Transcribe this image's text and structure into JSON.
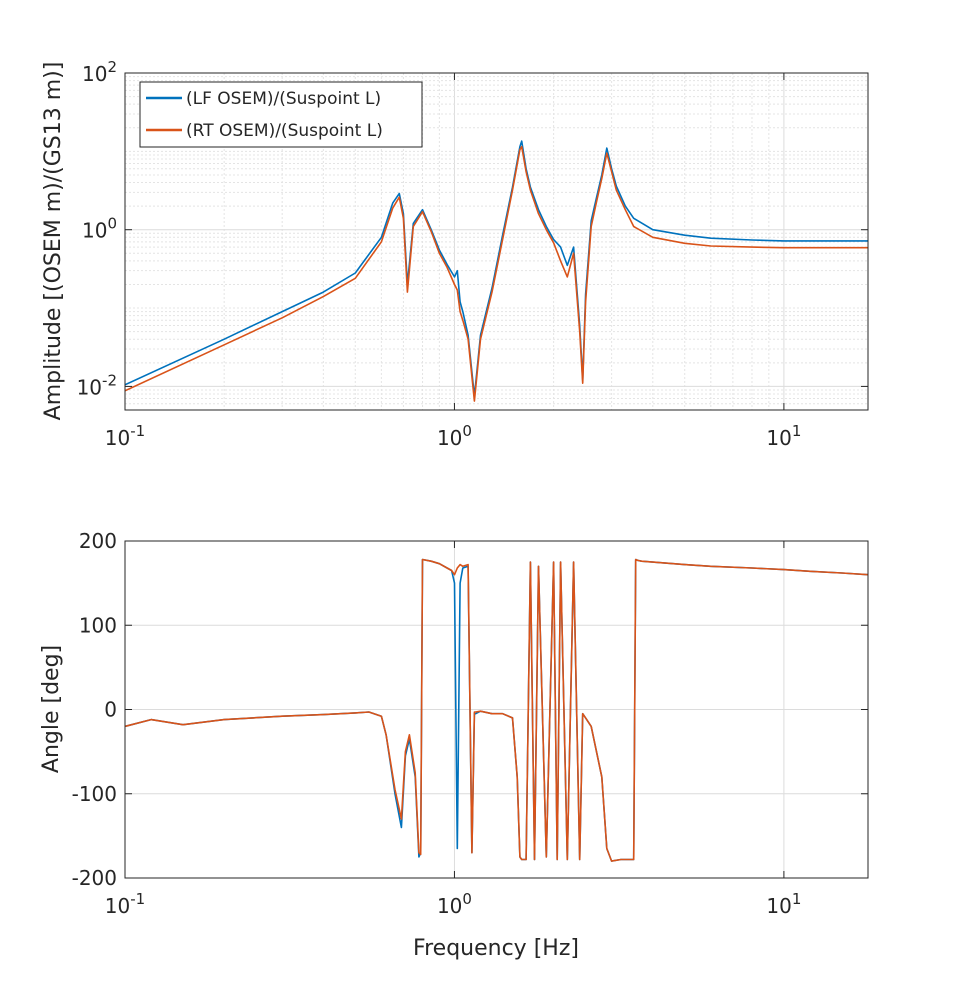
{
  "chart_data": [
    {
      "type": "line",
      "panel": "magnitude",
      "xlabel": "",
      "ylabel": "Amplitude [(OSEM m)/(GS13 m)]",
      "xscale": "log",
      "yscale": "log",
      "xlim": [
        0.1,
        18
      ],
      "ylim": [
        0.005,
        100
      ],
      "xticks": [
        0.1,
        1,
        10
      ],
      "xtick_labels": [
        {
          "base": "10",
          "exp": "-1"
        },
        {
          "base": "10",
          "exp": "0"
        },
        {
          "base": "10",
          "exp": "1"
        }
      ],
      "yticks": [
        0.01,
        1,
        100
      ],
      "ytick_labels": [
        {
          "base": "10",
          "exp": "-2"
        },
        {
          "base": "10",
          "exp": "0"
        },
        {
          "base": "10",
          "exp": "2"
        }
      ],
      "grid": "major+minor",
      "legend_location": "top-left",
      "series": [
        {
          "name": "(LF OSEM)/(Suspoint L)",
          "color": "#0072BD",
          "x": [
            0.1,
            0.2,
            0.3,
            0.4,
            0.5,
            0.6,
            0.65,
            0.68,
            0.7,
            0.72,
            0.75,
            0.8,
            0.85,
            0.9,
            0.95,
            1.0,
            1.02,
            1.04,
            1.06,
            1.1,
            1.15,
            1.2,
            1.3,
            1.4,
            1.5,
            1.58,
            1.6,
            1.65,
            1.7,
            1.8,
            1.9,
            2.0,
            2.1,
            2.2,
            2.3,
            2.4,
            2.45,
            2.5,
            2.6,
            2.7,
            2.8,
            2.9,
            3.0,
            3.1,
            3.3,
            3.5,
            4.0,
            5.0,
            6.0,
            8.0,
            10.0,
            12.0,
            15.0,
            18.0
          ],
          "y": [
            0.0105,
            0.04,
            0.09,
            0.16,
            0.28,
            0.8,
            2.2,
            2.9,
            1.6,
            0.2,
            1.2,
            1.8,
            1.0,
            0.55,
            0.36,
            0.25,
            0.3,
            0.12,
            0.09,
            0.045,
            0.0075,
            0.045,
            0.18,
            0.85,
            3.5,
            11.5,
            13.5,
            6.0,
            3.5,
            1.8,
            1.1,
            0.75,
            0.6,
            0.35,
            0.6,
            0.06,
            0.012,
            0.15,
            1.3,
            2.6,
            5.0,
            11.0,
            6.0,
            3.6,
            2.0,
            1.4,
            1.0,
            0.85,
            0.78,
            0.74,
            0.72,
            0.72,
            0.72,
            0.72
          ]
        },
        {
          "name": "(RT OSEM)/(Suspoint L)",
          "color": "#D95319",
          "x": [
            0.1,
            0.2,
            0.3,
            0.4,
            0.5,
            0.6,
            0.65,
            0.68,
            0.7,
            0.72,
            0.75,
            0.8,
            0.85,
            0.9,
            0.95,
            1.0,
            1.02,
            1.04,
            1.06,
            1.1,
            1.15,
            1.2,
            1.3,
            1.4,
            1.5,
            1.58,
            1.6,
            1.65,
            1.7,
            1.8,
            1.9,
            2.0,
            2.1,
            2.2,
            2.3,
            2.4,
            2.45,
            2.5,
            2.6,
            2.7,
            2.8,
            2.9,
            3.0,
            3.1,
            3.3,
            3.5,
            4.0,
            5.0,
            6.0,
            8.0,
            10.0,
            12.0,
            15.0,
            18.0
          ],
          "y": [
            0.0088,
            0.034,
            0.075,
            0.14,
            0.24,
            0.7,
            1.9,
            2.6,
            1.4,
            0.16,
            1.1,
            1.7,
            0.95,
            0.5,
            0.33,
            0.2,
            0.17,
            0.09,
            0.07,
            0.04,
            0.0065,
            0.04,
            0.16,
            0.75,
            3.2,
            10.5,
            11.5,
            5.5,
            3.2,
            1.6,
            1.0,
            0.68,
            0.4,
            0.25,
            0.5,
            0.05,
            0.011,
            0.12,
            1.1,
            2.3,
            4.5,
            9.5,
            5.5,
            3.2,
            1.8,
            1.1,
            0.8,
            0.67,
            0.62,
            0.6,
            0.59,
            0.59,
            0.59,
            0.59
          ]
        }
      ]
    },
    {
      "type": "line",
      "panel": "phase",
      "xlabel": "Frequency [Hz]",
      "ylabel": "Angle [deg]",
      "xscale": "log",
      "xlim": [
        0.1,
        18
      ],
      "ylim": [
        -200,
        200
      ],
      "xticks": [
        0.1,
        1,
        10
      ],
      "xtick_labels": [
        {
          "base": "10",
          "exp": "-1"
        },
        {
          "base": "10",
          "exp": "0"
        },
        {
          "base": "10",
          "exp": "1"
        }
      ],
      "yticks": [
        -200,
        -100,
        0,
        100,
        200
      ],
      "ytick_labels": [
        "-200",
        "-100",
        "0",
        "100",
        "200"
      ],
      "grid": "major",
      "series": [
        {
          "name": "(LF OSEM)/(Suspoint L)",
          "color": "#0072BD",
          "x": [
            0.1,
            0.12,
            0.15,
            0.2,
            0.3,
            0.4,
            0.5,
            0.55,
            0.6,
            0.62,
            0.66,
            0.69,
            0.71,
            0.73,
            0.76,
            0.78,
            0.79,
            0.8,
            0.85,
            0.9,
            0.95,
            0.98,
            1.0,
            1.02,
            1.04,
            1.06,
            1.1,
            1.13,
            1.15,
            1.16,
            1.2,
            1.3,
            1.4,
            1.5,
            1.55,
            1.58,
            1.6,
            1.65,
            1.7,
            1.75,
            1.8,
            1.9,
            2.0,
            2.05,
            2.1,
            2.2,
            2.3,
            2.4,
            2.45,
            2.5,
            2.6,
            2.8,
            2.9,
            3.0,
            3.2,
            3.4,
            3.5,
            3.55,
            3.6,
            3.7,
            4.0,
            5.0,
            6.0,
            8.0,
            10.0,
            12.0,
            15.0,
            18.0
          ],
          "y": [
            -20,
            -12,
            -18,
            -12,
            -8,
            -6,
            -4,
            -3,
            -8,
            -30,
            -100,
            -140,
            -55,
            -35,
            -80,
            -175,
            -170,
            178,
            176,
            173,
            168,
            165,
            150,
            -165,
            150,
            168,
            170,
            -170,
            -5,
            -5,
            -2,
            -5,
            -5,
            -10,
            -80,
            -175,
            -178,
            -178,
            175,
            -178,
            170,
            -175,
            175,
            -178,
            175,
            -178,
            175,
            -178,
            -5,
            -10,
            -20,
            -80,
            -165,
            -180,
            -178,
            -178,
            -178,
            178,
            177,
            176,
            175,
            172,
            170,
            168,
            166,
            164,
            162,
            160
          ]
        },
        {
          "name": "(RT OSEM)/(Suspoint L)",
          "color": "#D95319",
          "x": [
            0.1,
            0.12,
            0.15,
            0.2,
            0.3,
            0.4,
            0.5,
            0.55,
            0.6,
            0.62,
            0.66,
            0.69,
            0.71,
            0.73,
            0.76,
            0.78,
            0.79,
            0.8,
            0.85,
            0.9,
            0.95,
            0.98,
            1.0,
            1.02,
            1.04,
            1.06,
            1.1,
            1.13,
            1.15,
            1.16,
            1.2,
            1.3,
            1.4,
            1.5,
            1.55,
            1.58,
            1.6,
            1.65,
            1.7,
            1.75,
            1.8,
            1.9,
            2.0,
            2.05,
            2.1,
            2.2,
            2.3,
            2.4,
            2.45,
            2.5,
            2.6,
            2.8,
            2.9,
            3.0,
            3.2,
            3.4,
            3.5,
            3.55,
            3.6,
            3.7,
            4.0,
            5.0,
            6.0,
            8.0,
            10.0,
            12.0,
            15.0,
            18.0
          ],
          "y": [
            -20,
            -12,
            -18,
            -12,
            -8,
            -6,
            -4,
            -3,
            -8,
            -30,
            -95,
            -130,
            -50,
            -30,
            -75,
            -170,
            -172,
            178,
            176,
            173,
            168,
            165,
            160,
            168,
            172,
            170,
            172,
            -170,
            -3,
            -3,
            -2,
            -5,
            -5,
            -10,
            -80,
            -175,
            -178,
            -178,
            175,
            -178,
            170,
            -175,
            175,
            -178,
            175,
            -178,
            175,
            -178,
            -5,
            -10,
            -20,
            -80,
            -165,
            -180,
            -178,
            -178,
            -178,
            178,
            177,
            176,
            175,
            172,
            170,
            168,
            166,
            164,
            162,
            160
          ]
        }
      ]
    }
  ]
}
